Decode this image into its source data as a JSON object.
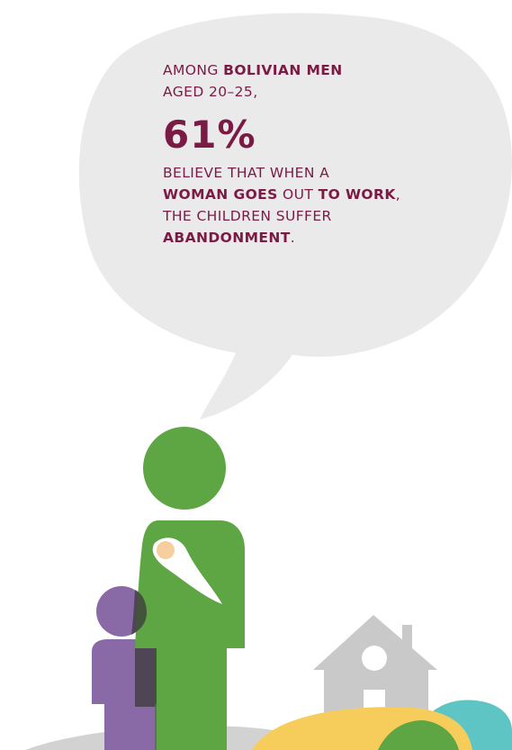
{
  "statement": {
    "line1_plain": "AMONG ",
    "line1_bold": "BOLIVIAN MEN",
    "line2": "AGED 20–25,",
    "stat": "61%",
    "line3": "BELIEVE THAT WHEN A",
    "line4_bold1": "WOMAN GOES",
    "line4_plain": " OUT ",
    "line4_bold2": "TO WORK",
    "line4_end": ",",
    "line5": "THE CHILDREN SUFFER",
    "line6_bold": "ABANDONMENT",
    "line6_end": "."
  },
  "colors": {
    "bubble": "#eaeaea",
    "text": "#7b1b45",
    "woman": "#5ea544",
    "child": "#8a6aa6",
    "baby_face": "#f7cf9f",
    "house": "#c9c9c9",
    "hill_yellow": "#f6cd5a",
    "hill_green": "#5ea544",
    "hill_teal": "#5ec4c4",
    "ground": "#d2d2d2"
  },
  "icons": {
    "figures": [
      "woman-icon",
      "baby-icon",
      "child-icon",
      "house-icon",
      "hills-icon"
    ]
  }
}
